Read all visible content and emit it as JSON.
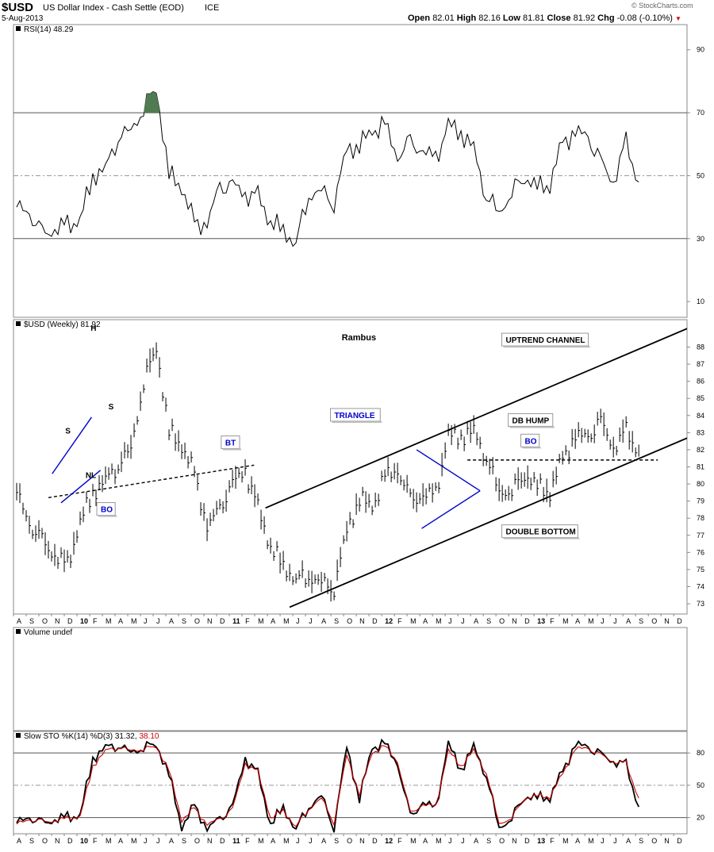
{
  "header": {
    "symbol": "$USD",
    "name": "US Dollar Index - Cash Settle (EOD)",
    "exchange": "ICE",
    "date": "5-Aug-2013",
    "open_label": "Open",
    "open": "82.01",
    "high_label": "High",
    "high": "82.16",
    "low_label": "Low",
    "low": "81.81",
    "close_label": "Close",
    "close": "81.92",
    "chg_label": "Chg",
    "chg": "-0.08 (-0.10%)",
    "watermark": "© StockCharts.com"
  },
  "colors": {
    "price": "#000000",
    "annotation_blue": "#0000cc",
    "rsi_fill": "#4f7a4f",
    "sto_d": "#cc0000",
    "grid": "#999999",
    "chg_down": "#cc0000"
  },
  "chart_data": [
    {
      "type": "line",
      "panel": "rsi",
      "legend": "RSI(14) 48.29",
      "y_ticks": [
        90,
        70,
        50,
        30,
        10
      ],
      "ylim": [
        5,
        98
      ],
      "reference_lines": [
        70,
        50,
        30
      ],
      "x": [
        "2009-07",
        "2009-08",
        "2009-09",
        "2009-10",
        "2009-11",
        "2009-12",
        "2010-01",
        "2010-02",
        "2010-03",
        "2010-04",
        "2010-05",
        "2010-06",
        "2010-07",
        "2010-08",
        "2010-09",
        "2010-10",
        "2010-11",
        "2010-12",
        "2011-01",
        "2011-02",
        "2011-03",
        "2011-04",
        "2011-05",
        "2011-06",
        "2011-07",
        "2011-08",
        "2011-09",
        "2011-10",
        "2011-11",
        "2011-12",
        "2012-01",
        "2012-02",
        "2012-03",
        "2012-04",
        "2012-05",
        "2012-06",
        "2012-07",
        "2012-08",
        "2012-09",
        "2012-10",
        "2012-11",
        "2012-12",
        "2013-01",
        "2013-02",
        "2013-03",
        "2013-04",
        "2013-05",
        "2013-06",
        "2013-07",
        "2013-08"
      ],
      "values": [
        40,
        38,
        31,
        33,
        34,
        36,
        50,
        52,
        63,
        64,
        72,
        78,
        50,
        47,
        34,
        35,
        46,
        47,
        44,
        43,
        36,
        32,
        29,
        44,
        45,
        42,
        58,
        60,
        64,
        66,
        56,
        60,
        58,
        55,
        66,
        64,
        58,
        44,
        38,
        45,
        50,
        46,
        48,
        60,
        64,
        62,
        54,
        48,
        60,
        48
      ]
    },
    {
      "type": "line",
      "panel": "price",
      "legend": "$USD (Weekly) 81.92",
      "title_note": "Rambus",
      "y_ticks": [
        88,
        87,
        86,
        85,
        84,
        83,
        82,
        81,
        80,
        79,
        78,
        77,
        76,
        75,
        74,
        73
      ],
      "ylim": [
        72.4,
        89.6
      ],
      "x": [
        "2009-07",
        "2009-08",
        "2009-09",
        "2009-10",
        "2009-11",
        "2009-12",
        "2010-01",
        "2010-02",
        "2010-03",
        "2010-04",
        "2010-05",
        "2010-06",
        "2010-07",
        "2010-08",
        "2010-09",
        "2010-10",
        "2010-11",
        "2010-12",
        "2011-01",
        "2011-02",
        "2011-03",
        "2011-04",
        "2011-05",
        "2011-06",
        "2011-07",
        "2011-08",
        "2011-09",
        "2011-10",
        "2011-11",
        "2011-12",
        "2012-01",
        "2012-02",
        "2012-03",
        "2012-04",
        "2012-05",
        "2012-06",
        "2012-07",
        "2012-08",
        "2012-09",
        "2012-10",
        "2012-11",
        "2012-12",
        "2013-01",
        "2013-02",
        "2013-03",
        "2013-04",
        "2013-05",
        "2013-06",
        "2013-07",
        "2013-08"
      ],
      "values": [
        79.5,
        77.6,
        76.6,
        75.8,
        75.2,
        77.8,
        79.5,
        80.2,
        81.2,
        82.0,
        86.0,
        88.0,
        83.0,
        82.3,
        80.5,
        77.5,
        78.5,
        80.0,
        80.8,
        78.5,
        76.4,
        75.1,
        74.5,
        74.6,
        74.2,
        74.0,
        77.2,
        79.2,
        78.6,
        80.4,
        80.8,
        79.0,
        79.3,
        79.4,
        82.8,
        82.8,
        83.0,
        81.6,
        79.5,
        79.6,
        80.6,
        79.8,
        79.6,
        81.4,
        82.8,
        82.7,
        83.6,
        82.1,
        83.0,
        81.9
      ],
      "annotations": [
        "S",
        "H",
        "S",
        "NL",
        "BO",
        "BT",
        "TRIANGLE",
        "UPTREND CHANNEL",
        "DB HUMP",
        "BO",
        "DOUBLE BOTTOM"
      ]
    },
    {
      "type": "bar",
      "panel": "volume",
      "legend": "Volume undef"
    },
    {
      "type": "line",
      "panel": "stochastic",
      "legend_prefix": "Slow STO %K(14) %D(3)",
      "k_value": "31.32",
      "d_value": "38.10",
      "y_ticks": [
        80,
        50,
        20
      ],
      "ylim": [
        5,
        100
      ],
      "reference_lines": [
        80,
        50,
        20
      ],
      "x": [
        "2009-07",
        "2009-08",
        "2009-09",
        "2009-10",
        "2009-11",
        "2009-12",
        "2010-01",
        "2010-02",
        "2010-03",
        "2010-04",
        "2010-05",
        "2010-06",
        "2010-07",
        "2010-08",
        "2010-09",
        "2010-10",
        "2010-11",
        "2010-12",
        "2011-01",
        "2011-02",
        "2011-03",
        "2011-04",
        "2011-05",
        "2011-06",
        "2011-07",
        "2011-08",
        "2011-09",
        "2011-10",
        "2011-11",
        "2011-12",
        "2012-01",
        "2012-02",
        "2012-03",
        "2012-04",
        "2012-05",
        "2012-06",
        "2012-07",
        "2012-08",
        "2012-09",
        "2012-10",
        "2012-11",
        "2012-12",
        "2013-01",
        "2013-02",
        "2013-03",
        "2013-04",
        "2013-05",
        "2013-06",
        "2013-07",
        "2013-08"
      ],
      "series": [
        {
          "name": "%K",
          "values": [
            15,
            20,
            14,
            18,
            20,
            22,
            75,
            85,
            88,
            80,
            86,
            88,
            60,
            12,
            30,
            10,
            18,
            30,
            75,
            60,
            15,
            28,
            10,
            30,
            40,
            12,
            85,
            38,
            85,
            88,
            70,
            20,
            34,
            28,
            88,
            65,
            85,
            60,
            10,
            20,
            40,
            38,
            40,
            62,
            88,
            85,
            78,
            72,
            68,
            30
          ]
        },
        {
          "name": "%D",
          "values": [
            14,
            18,
            16,
            17,
            19,
            21,
            68,
            82,
            86,
            82,
            84,
            86,
            64,
            18,
            28,
            14,
            18,
            28,
            70,
            62,
            20,
            26,
            12,
            28,
            38,
            16,
            78,
            42,
            80,
            86,
            72,
            24,
            32,
            30,
            82,
            68,
            82,
            62,
            14,
            20,
            38,
            40,
            40,
            60,
            84,
            84,
            78,
            72,
            70,
            38
          ]
        }
      ]
    }
  ],
  "x_axis": {
    "labels": [
      "A",
      "S",
      "O",
      "N",
      "D",
      "10",
      "F",
      "M",
      "A",
      "M",
      "J",
      "J",
      "A",
      "S",
      "O",
      "N",
      "D",
      "11",
      "F",
      "M",
      "A",
      "M",
      "J",
      "J",
      "A",
      "S",
      "O",
      "N",
      "D",
      "12",
      "F",
      "M",
      "A",
      "M",
      "J",
      "J",
      "A",
      "S",
      "O",
      "N",
      "D",
      "13",
      "F",
      "M",
      "A",
      "M",
      "J",
      "J",
      "A",
      "S",
      "O",
      "N",
      "D"
    ],
    "bold_labels": [
      "10",
      "11",
      "12",
      "13"
    ]
  }
}
